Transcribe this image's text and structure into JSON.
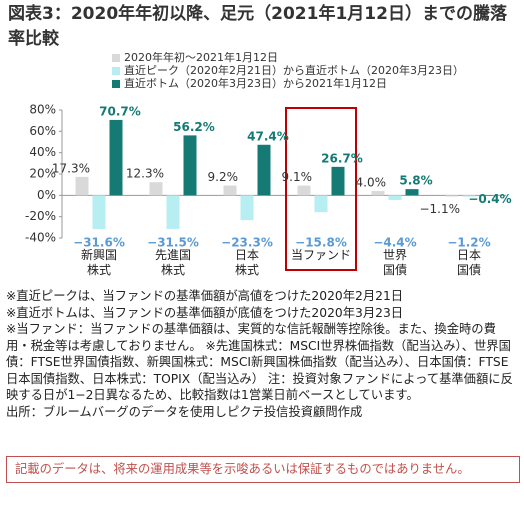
{
  "title": "図表3：2020年年初以降、足元（2021年1月12日）までの騰落率比較",
  "chart_data": {
    "type": "bar",
    "categories": [
      "新興国\n株式",
      "先進国\n株式",
      "日本\n株式",
      "当ファンド",
      "世界\n国債",
      "日本\n国債"
    ],
    "series": [
      {
        "name": "2020年年初～2021年1月12日",
        "color": "#d9d9d9",
        "values": [
          17.3,
          12.3,
          9.2,
          9.1,
          4.0,
          -1.1
        ],
        "value_labels": [
          "17.3%",
          "12.3%",
          "9.2%",
          "9.1%",
          "4.0%",
          "−1.1%"
        ]
      },
      {
        "name": "直近ピーク（2020年2月21日）から直近ボトム（2020年3月23日）",
        "color": "#b7eef2",
        "values": [
          -31.6,
          -31.5,
          -23.3,
          -15.8,
          -4.4,
          -1.2
        ],
        "value_labels": [
          "−31.6%",
          "−31.5%",
          "−23.3%",
          "−15.8%",
          "−4.4%",
          "−1.2%"
        ]
      },
      {
        "name": "直近ボトム（2020年3月23日）から2021年1月12日",
        "color": "#157a74",
        "values": [
          70.7,
          56.2,
          47.4,
          26.7,
          5.8,
          -0.4
        ],
        "value_labels": [
          "70.7%",
          "56.2%",
          "47.4%",
          "26.7%",
          "5.8%",
          "−0.4%"
        ]
      }
    ],
    "ylim": [
      -40,
      80
    ],
    "yticks": [
      {
        "value": -40,
        "label": "-40%"
      },
      {
        "value": -20,
        "label": "-20%"
      },
      {
        "value": 0,
        "label": "0%"
      },
      {
        "value": 20,
        "label": "20%"
      },
      {
        "value": 40,
        "label": "40%"
      },
      {
        "value": 60,
        "label": "60%"
      },
      {
        "value": 80,
        "label": "80%"
      }
    ]
  },
  "notes": [
    "※直近ピークは、当ファンドの基準価額が高値をつけた2020年2月21日",
    "※直近ボトムは、当ファンドの基準価額が底値をつけた2020年3月23日",
    "※当ファンド：当ファンドの基準価額は、実質的な信託報酬等控除後。また、換金時の費用・税金等は考慮しておりません。 ※先進国株式：MSCI世界株価指数（配当込み）、世界国債：FTSE世界国債指数、新興国株式：MSCI新興国株価指数（配当込み）、日本国債：FTSE日本国債指数、日本株式：TOPIX（配当込み） 注：投資対象ファンドによって基準価額に反映する日が1−2日異なるため、比較指数は1営業日前ベースとしています。",
    "出所：ブルームバーグのデータを使用しピクテ投信投資顧問作成"
  ],
  "disclaimer": "記載のデータは、将来の運用成果等を示唆あるいは保証するものではありません。"
}
